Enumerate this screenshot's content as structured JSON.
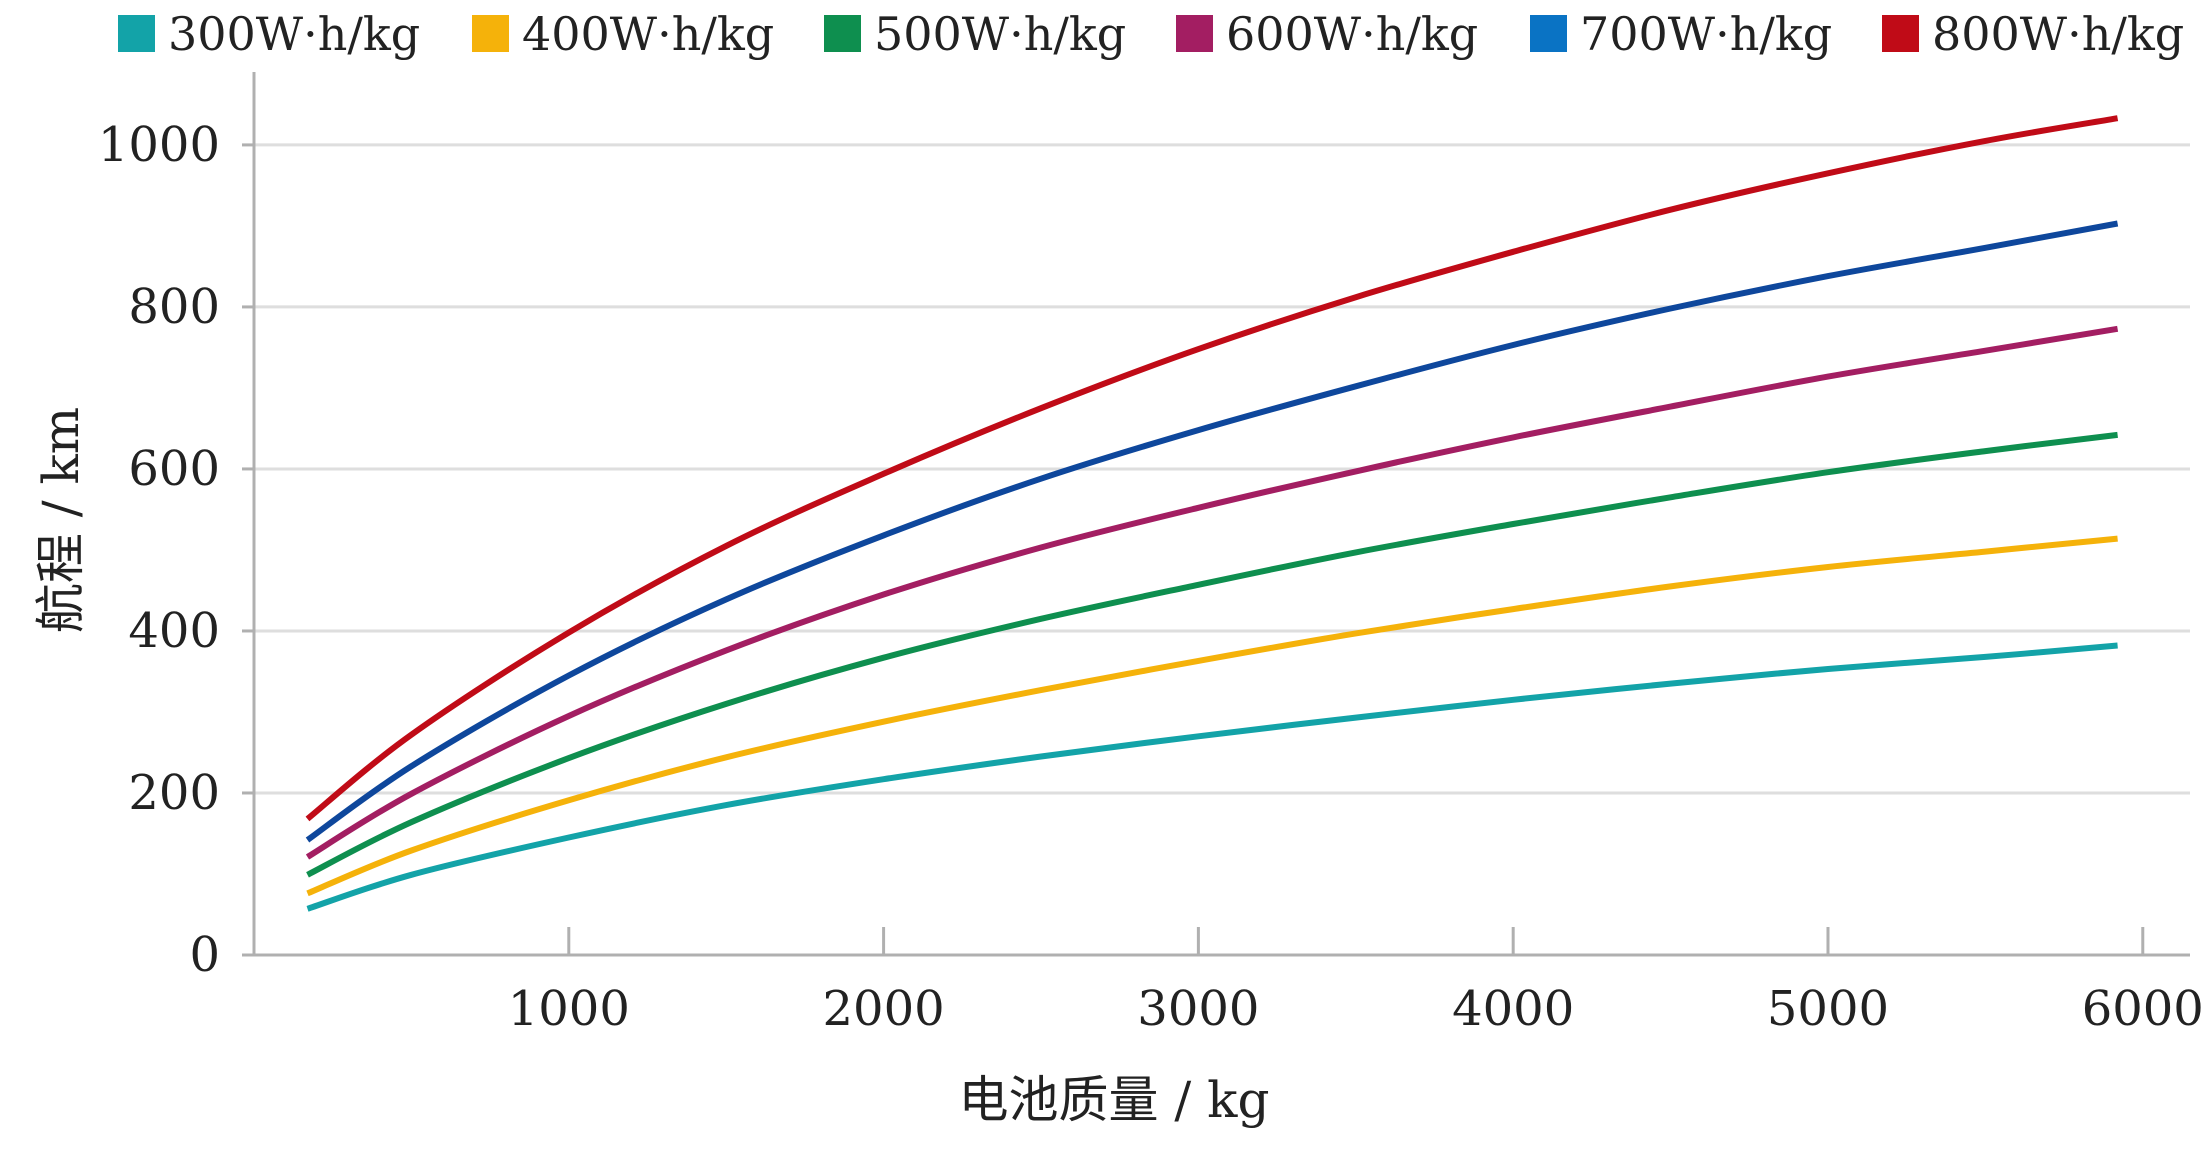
{
  "chart_data": {
    "type": "line",
    "xlabel": "电池质量 / kg",
    "ylabel": "航程 / km",
    "xlim": [
      0,
      6150
    ],
    "ylim": [
      0,
      1090
    ],
    "xticks": [
      1000,
      2000,
      3000,
      4000,
      5000,
      6000
    ],
    "yticks": [
      0,
      200,
      400,
      600,
      800,
      1000
    ],
    "grid": "horizontal",
    "legend_position": "top",
    "x": [
      170,
      500,
      1000,
      1500,
      2000,
      2500,
      3000,
      3500,
      4000,
      4500,
      5000,
      5500,
      5920
    ],
    "series": [
      {
        "name": "300W·h/kg",
        "color": "#13A3A8",
        "values": [
          57,
          99,
          145,
          185,
          217,
          245,
          270,
          293,
          315,
          335,
          353,
          368,
          382
        ]
      },
      {
        "name": "400W·h/kg",
        "color": "#F5B20A",
        "values": [
          76,
          129,
          191,
          244,
          288,
          327,
          363,
          397,
          427,
          455,
          479,
          498,
          514
        ]
      },
      {
        "name": "500W·h/kg",
        "color": "#0E8F4F",
        "values": [
          99,
          164,
          243,
          310,
          367,
          415,
          457,
          497,
          532,
          565,
          596,
          622,
          642
        ]
      },
      {
        "name": "600W·h/kg",
        "color": "#A31E62",
        "values": [
          121,
          199,
          295,
          376,
          445,
          503,
          552,
          597,
          639,
          677,
          714,
          746,
          773
        ]
      },
      {
        "name": "700W·h/kg",
        "color": "#0E479C",
        "legend_color": "#0A73C4",
        "values": [
          142,
          233,
          345,
          439,
          518,
          588,
          648,
          702,
          753,
          798,
          838,
          873,
          903
        ]
      },
      {
        "name": "800W·h/kg",
        "color": "#C00B17",
        "values": [
          168,
          272,
          398,
          505,
          594,
          675,
          748,
          812,
          868,
          920,
          965,
          1005,
          1033
        ]
      }
    ]
  }
}
